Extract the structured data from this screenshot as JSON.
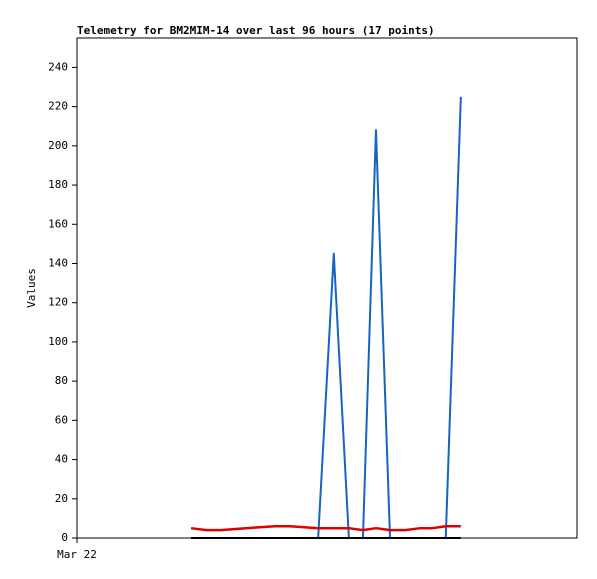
{
  "chart_data": {
    "type": "line",
    "title": "Telemetry for BM2MIM-14 over last 96 hours (17 points)",
    "y_label": "Values",
    "x": [
      21.9,
      24.8,
      27.6,
      32.4,
      38.0,
      40.9,
      46.3,
      49.3,
      52.2,
      54.9,
      57.4,
      60.1,
      63.0,
      65.9,
      68.2,
      70.8,
      73.7
    ],
    "xlim": [
      0,
      96
    ],
    "xticks": [
      {
        "value": 0,
        "label": "Mar 22"
      }
    ],
    "ylim": [
      0,
      255
    ],
    "yticks": [
      0,
      20,
      40,
      60,
      80,
      100,
      120,
      140,
      160,
      180,
      200,
      220,
      240
    ],
    "series": [
      {
        "color": "#1565c0",
        "width": 2,
        "values": [
          0,
          0,
          0,
          0,
          0,
          0,
          0,
          145,
          0,
          0,
          208,
          0,
          0,
          0,
          0,
          0,
          225
        ]
      },
      {
        "color": "#e00000",
        "width": 2.5,
        "values": [
          5,
          4,
          4,
          5,
          6,
          6,
          5,
          5,
          5,
          4,
          5,
          4,
          4,
          5,
          5,
          6,
          6
        ]
      },
      {
        "color": "#000000",
        "width": 2,
        "values": [
          0,
          0,
          0,
          0,
          0,
          0,
          0,
          0,
          0,
          0,
          0,
          0,
          0,
          0,
          0,
          0,
          0
        ]
      }
    ]
  }
}
